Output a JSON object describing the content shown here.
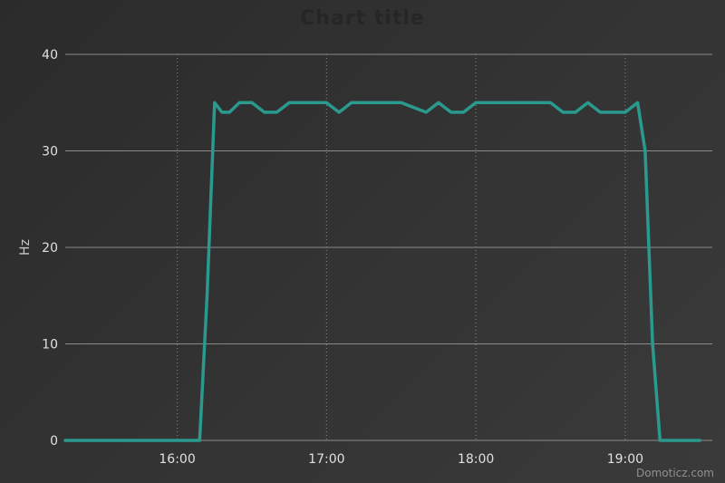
{
  "chart_data": {
    "type": "line",
    "title": "Chart title",
    "xlabel": "",
    "ylabel": "Hz",
    "ylim": [
      0,
      40
    ],
    "yticks": [
      0,
      10,
      20,
      30,
      40
    ],
    "xticks": [
      "16:00",
      "17:00",
      "18:00",
      "19:00"
    ],
    "grid": true,
    "line_color": "#2a9a8e",
    "series": [
      {
        "name": "",
        "x": [
          "15:15",
          "16:05",
          "16:09",
          "16:12",
          "16:15",
          "16:18",
          "16:21",
          "16:25",
          "16:30",
          "16:35",
          "16:40",
          "16:45",
          "16:50",
          "16:55",
          "17:00",
          "17:05",
          "17:10",
          "17:15",
          "17:20",
          "17:30",
          "17:40",
          "17:45",
          "17:50",
          "17:55",
          "18:00",
          "18:05",
          "18:10",
          "18:20",
          "18:30",
          "18:35",
          "18:40",
          "18:45",
          "18:50",
          "18:55",
          "19:00",
          "19:05",
          "19:08",
          "19:11",
          "19:14",
          "19:17",
          "19:30"
        ],
        "values": [
          0,
          0,
          0,
          15,
          35,
          34,
          34,
          35,
          35,
          34,
          34,
          35,
          35,
          35,
          35,
          34,
          35,
          35,
          35,
          35,
          34,
          35,
          34,
          34,
          35,
          35,
          35,
          35,
          35,
          34,
          34,
          35,
          34,
          34,
          34,
          35,
          30,
          10,
          0,
          0,
          0
        ]
      }
    ]
  },
  "credit": "Domoticz.com"
}
